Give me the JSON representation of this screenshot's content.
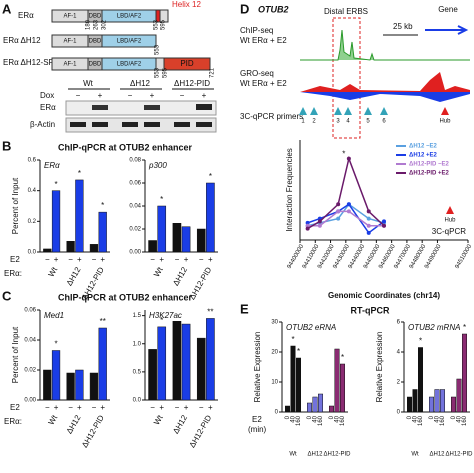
{
  "panel_a": {
    "letter": "A",
    "constructs": [
      "ERα",
      "ERα ΔH12",
      "ERα ΔH12-SRC2(PID)"
    ],
    "domains": [
      "AF-1",
      "DBD",
      "LBD/AF2"
    ],
    "helix": "Helix 12",
    "pid": "PID",
    "residues": [
      [
        180,
        263,
        302,
        553,
        595
      ],
      [
        553
      ],
      [
        553,
        595,
        721
      ]
    ],
    "lanes": [
      "Wt",
      "ΔH12",
      "ΔH12-PID"
    ],
    "dox_label": "Dox",
    "dox_signs": [
      "−",
      "+",
      "−",
      "+",
      "−",
      "+"
    ],
    "blots": [
      "ERα",
      "β-Actin"
    ]
  },
  "panel_b": {
    "letter": "B",
    "header": "ChIP-qPCR at OTUB2 enhancer"
  },
  "panel_c": {
    "letter": "C",
    "header": "ChIP-qPCR at OTUB2 enhancer"
  },
  "panel_d": {
    "letter": "D",
    "gene_name": "OTUB2",
    "distal": "Distal ERBS",
    "scale": "25 kb",
    "gene": "Gene",
    "chip": "ChIP-seq",
    "chip_sample": "Wt ERα + E2",
    "gro": "GRO-seq",
    "gro_sample": "Wt ERα + E2",
    "primers_label": "3C-qPCR primers",
    "primers": [
      "1",
      "2",
      "3",
      "4",
      "5",
      "6"
    ],
    "hub": "Hub"
  },
  "panel_e": {
    "letter": "E",
    "header": "RT-qPCR"
  },
  "chart_data": [
    {
      "type": "bar",
      "title": "ERα",
      "ylabel": "Percent of Input",
      "treatment_label": "E2",
      "group_label": "ERα:",
      "categories": [
        "Wt",
        "ΔH12",
        "ΔH12-PID"
      ],
      "series": [
        {
          "name": "−",
          "color": "#111111",
          "values": [
            0.02,
            0.07,
            0.05
          ]
        },
        {
          "name": "+",
          "color": "#1a3de6",
          "values": [
            0.4,
            0.47,
            0.26
          ]
        }
      ],
      "ylim": [
        0,
        0.6
      ],
      "yticks": [
        {
          "value": 0,
          "label": "0.0"
        },
        0.2,
        0.4,
        0.6
      ],
      "annotations": [
        {
          "text": "*",
          "series": 1,
          "index": 0
        },
        {
          "text": "*",
          "series": 1,
          "index": 1
        },
        {
          "text": "*",
          "series": 1,
          "index": 2
        }
      ]
    },
    {
      "type": "bar",
      "title": "p300",
      "categories": [
        "Wt",
        "ΔH12",
        "ΔH12-PID"
      ],
      "series": [
        {
          "name": "−",
          "color": "#111111",
          "values": [
            0.01,
            0.025,
            0.02
          ]
        },
        {
          "name": "+",
          "color": "#1a3de6",
          "values": [
            0.04,
            0.022,
            0.06
          ]
        }
      ],
      "ylim": [
        0,
        0.08
      ],
      "yticks": [
        {
          "value": 0,
          "label": "0.00"
        },
        0.02,
        0.04,
        0.06,
        0.08
      ],
      "annotations": [
        {
          "text": "*",
          "series": 1,
          "index": 0
        },
        {
          "text": "*",
          "series": 1,
          "index": 2
        }
      ]
    },
    {
      "type": "bar",
      "title": "Med1",
      "ylabel": "Percent of Input",
      "treatment_label": "E2",
      "group_label": "ERα:",
      "categories": [
        "Wt",
        "ΔH12",
        "ΔH12-PID"
      ],
      "series": [
        {
          "name": "−",
          "color": "#111111",
          "values": [
            0.02,
            0.018,
            0.018
          ]
        },
        {
          "name": "+",
          "color": "#1a3de6",
          "values": [
            0.033,
            0.02,
            0.048
          ]
        }
      ],
      "ylim": [
        0,
        0.06
      ],
      "yticks": [
        {
          "value": 0,
          "label": "0.00"
        },
        0.02,
        0.04,
        0.06
      ],
      "annotations": [
        {
          "text": "*",
          "series": 1,
          "index": 0
        },
        {
          "text": "**",
          "series": 1,
          "index": 2
        }
      ]
    },
    {
      "type": "bar",
      "title": "H3K27ac",
      "categories": [
        "Wt",
        "ΔH12",
        "ΔH12-PID"
      ],
      "series": [
        {
          "name": "−",
          "color": "#111111",
          "values": [
            0.9,
            1.4,
            1.1
          ]
        },
        {
          "name": "+",
          "color": "#1a3de6",
          "values": [
            1.3,
            1.35,
            1.45
          ]
        }
      ],
      "ylim": [
        0,
        1.6
      ],
      "yticks": [
        {
          "value": 0,
          "label": "0.0"
        },
        0.5,
        {
          "value": 1,
          "label": "1.0"
        },
        1.5
      ],
      "annotations": [
        {
          "text": "*",
          "series": 1,
          "index": 0
        },
        {
          "text": "**",
          "series": 1,
          "index": 2
        }
      ]
    },
    {
      "type": "bar",
      "title": "OTUB2 eRNA",
      "ylabel": "Relative Expression",
      "treatment_label": "E2",
      "treatment_unit": "(min)",
      "categories": [
        "Wt",
        "ΔH12",
        "ΔH12-PID"
      ],
      "category_colors": [
        "#111111",
        "#7272dc",
        "#8a2b72"
      ],
      "series": [
        {
          "name": "0",
          "values": [
            2,
            3,
            2
          ]
        },
        {
          "name": "40",
          "values": [
            22,
            5,
            21
          ]
        },
        {
          "name": "160",
          "values": [
            18,
            6,
            16
          ]
        }
      ],
      "ylim": [
        0,
        30
      ],
      "yticks": [
        0,
        10,
        20,
        30
      ],
      "annotations": [
        {
          "text": "*",
          "series": 1,
          "index": 0
        },
        {
          "text": "*",
          "series": 2,
          "index": 0
        },
        {
          "text": "*",
          "series": 2,
          "index": 2
        }
      ]
    },
    {
      "type": "bar",
      "title": "OTUB2 mRNA",
      "ylabel": "Relative Expression",
      "categories": [
        "Wt",
        "ΔH12",
        "ΔH12-PID"
      ],
      "category_colors": [
        "#111111",
        "#7272dc",
        "#8a2b72"
      ],
      "series": [
        {
          "name": "0",
          "values": [
            1,
            1,
            1
          ]
        },
        {
          "name": "40",
          "values": [
            1.5,
            1.5,
            2.2
          ]
        },
        {
          "name": "160",
          "values": [
            4.3,
            1.5,
            5.2
          ]
        }
      ],
      "ylim": [
        0,
        6
      ],
      "yticks": [
        0,
        2,
        4,
        6
      ],
      "annotations": [
        {
          "text": "*",
          "series": 2,
          "index": 0
        },
        {
          "text": "*",
          "series": 2,
          "index": 2
        }
      ]
    },
    {
      "type": "line",
      "ylabel": "Interaction Frequencies",
      "xlabel": "Genomic Coordinates (chr14)",
      "x": [
        94405000,
        94413000,
        94425000,
        94432000,
        94445000,
        94455000
      ],
      "series": [
        {
          "name": "ΔH12 −E2",
          "color": "#5aa0e0",
          "values": [
            0.01,
            0.012,
            0.015,
            0.025,
            0.015,
            0.012
          ]
        },
        {
          "name": "ΔH12 +E2",
          "color": "#1a3de6",
          "values": [
            0.012,
            0.015,
            0.02,
            0.025,
            0.005,
            0.013
          ]
        },
        {
          "name": "ΔH12-PID −E2",
          "color": "#b07ad0",
          "values": [
            0.01,
            0.01,
            0.02,
            0.02,
            0.01,
            0.01
          ]
        },
        {
          "name": "ΔH12-PID +E2",
          "color": "#6a1a6a",
          "values": [
            0.008,
            0.013,
            0.025,
            0.057,
            0.02,
            0.01
          ]
        }
      ],
      "xlim": [
        94400000,
        94510000
      ],
      "xticks": [
        94400000,
        94410000,
        94420000,
        94430000,
        94440000,
        94450000,
        94460000,
        94470000,
        94480000,
        94490000,
        94510000
      ],
      "ylim": [
        0,
        0.07
      ],
      "legend": "upper right",
      "annotations": [
        {
          "text": "*",
          "series": 3,
          "index": 3
        }
      ],
      "hub": "Hub",
      "method": "3C-qPCR"
    }
  ]
}
